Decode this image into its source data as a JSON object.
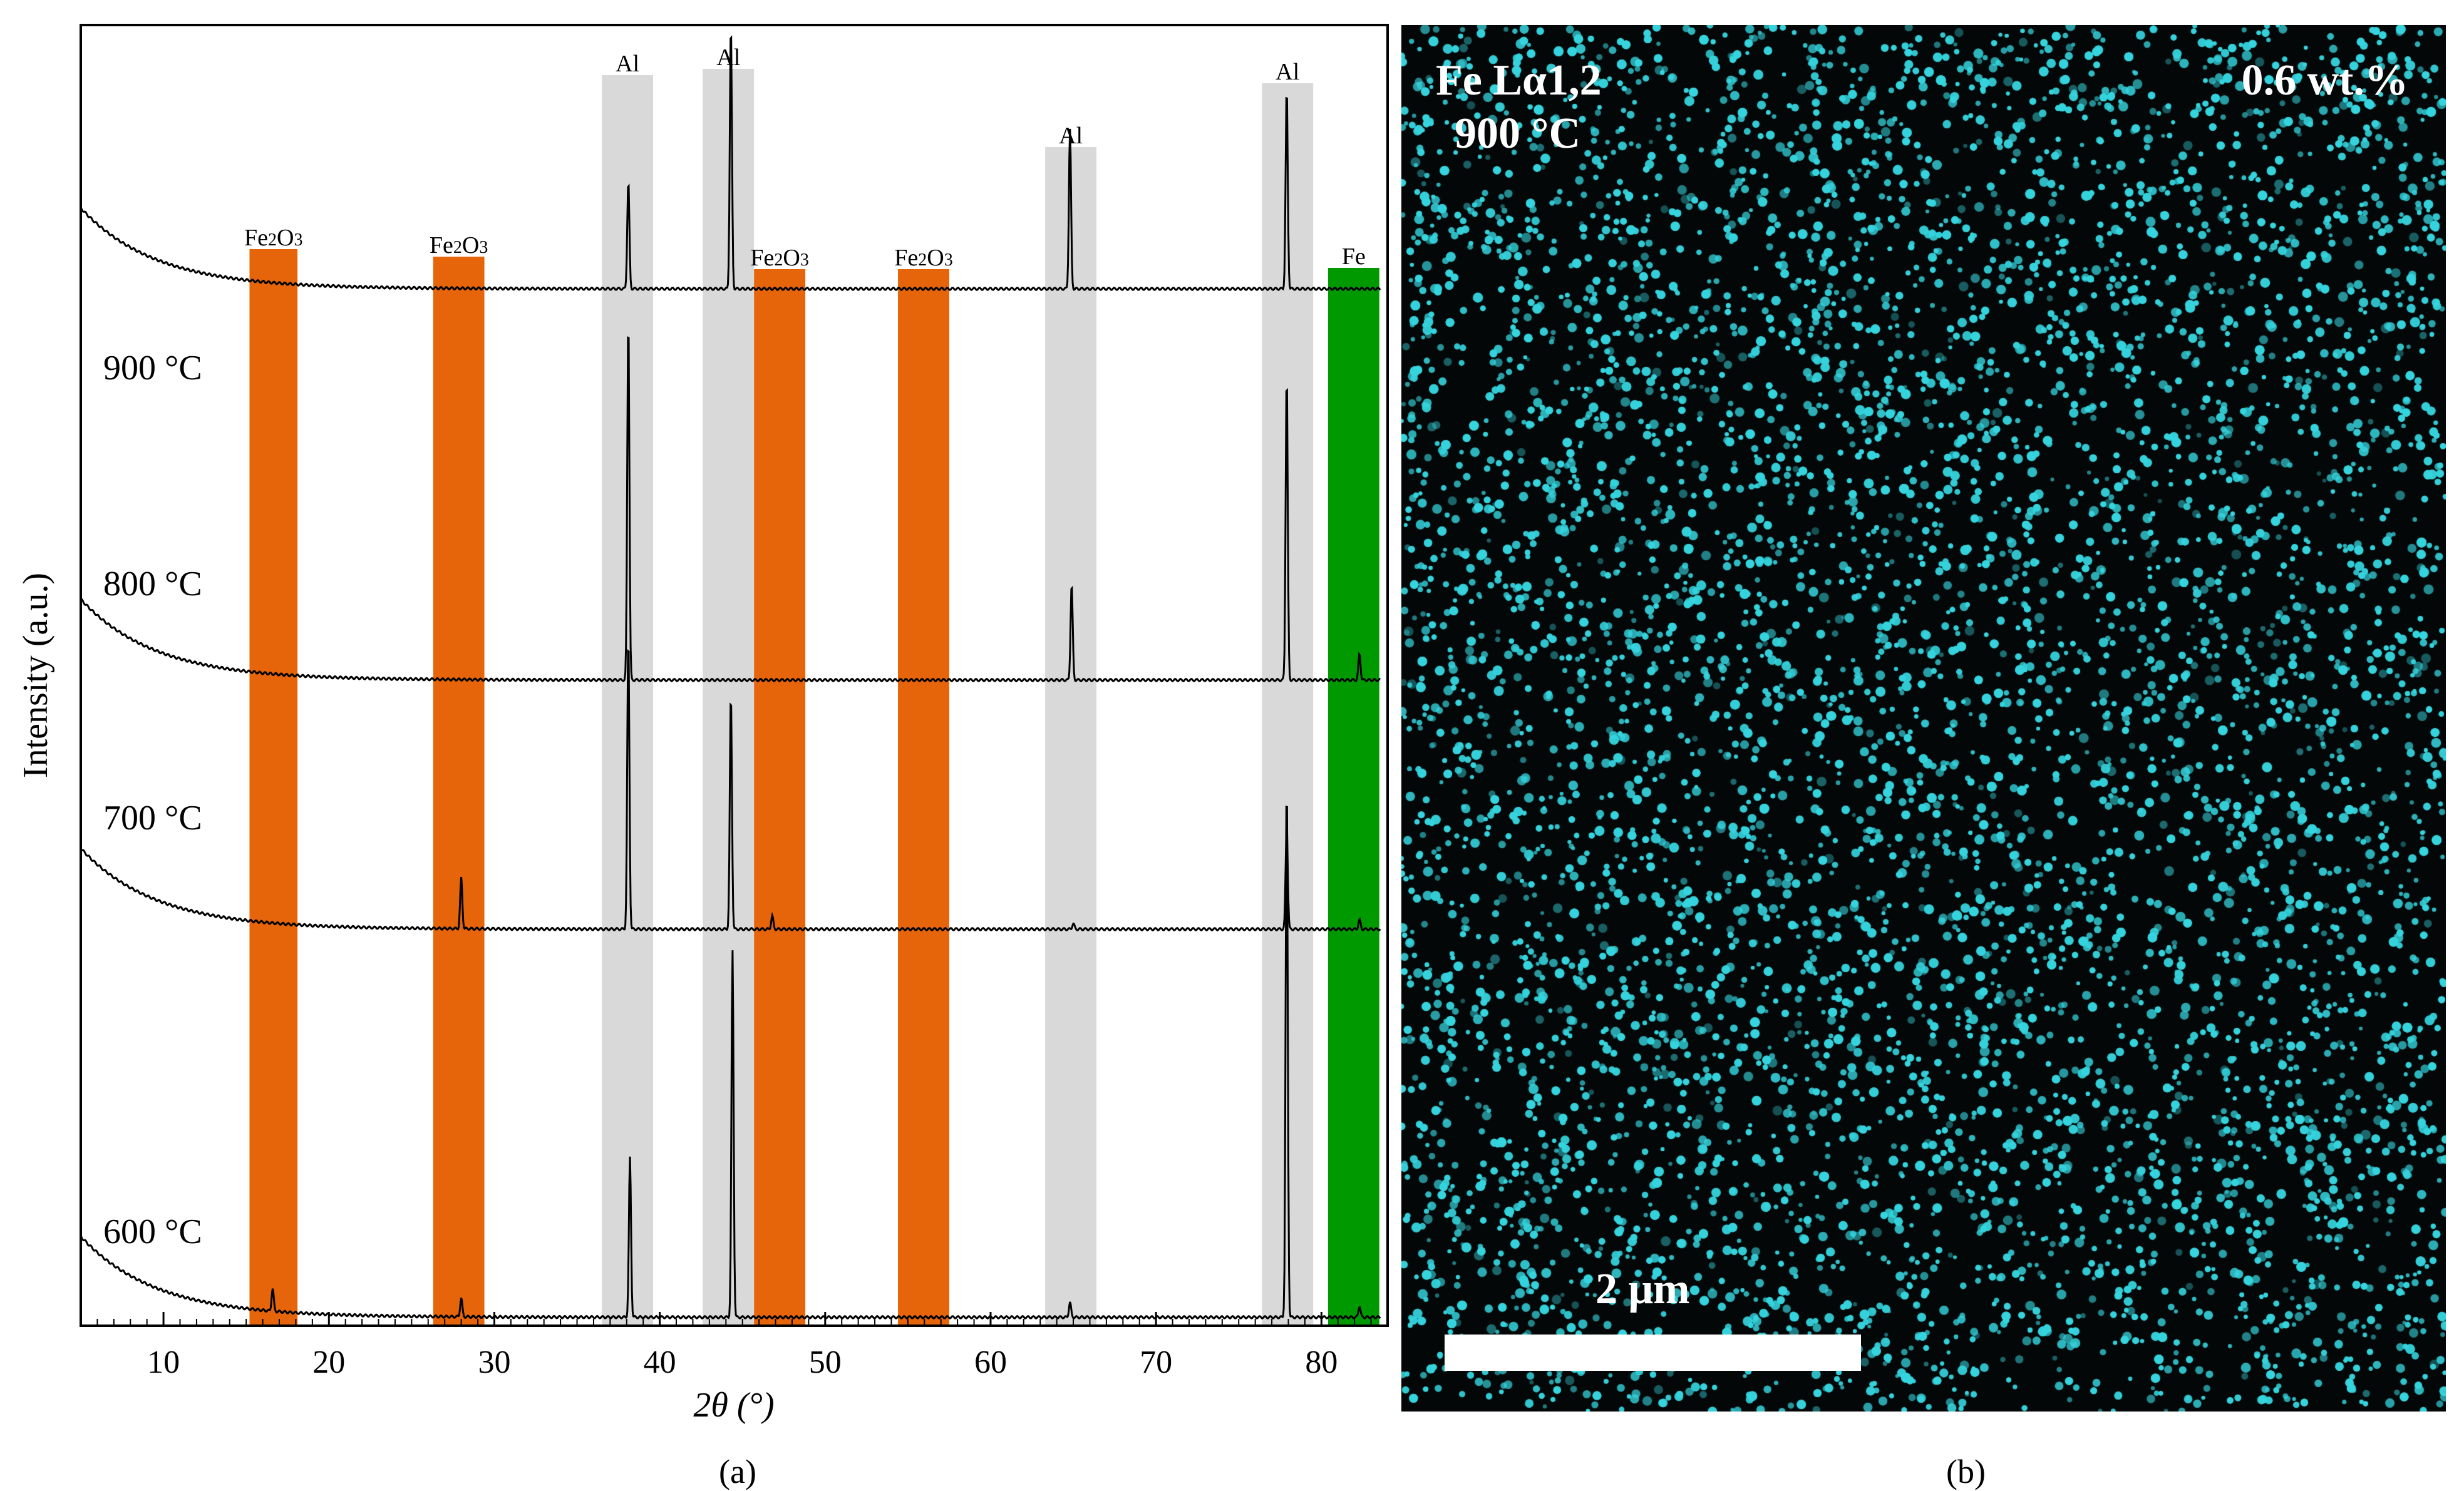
{
  "chart_data": [
    {
      "type": "line",
      "panel_caption": "(a)",
      "xlabel": "2θ (°)",
      "ylabel": "Intensity (a.u.)",
      "xlim": [
        5,
        84
      ],
      "x_ticks": [
        10,
        20,
        30,
        40,
        50,
        60,
        70,
        80
      ],
      "grid": false,
      "bands": [
        {
          "label": "Fe2O3",
          "phase": "Fe2O3",
          "x_range": [
            15.2,
            18.1
          ],
          "color": "#e6650a"
        },
        {
          "label": "Fe2O3",
          "phase": "Fe2O3",
          "x_range": [
            26.3,
            29.4
          ],
          "color": "#e6650a"
        },
        {
          "label": "Al",
          "phase": "Al",
          "x_range": [
            36.5,
            39.6
          ],
          "color": "#d9d9d9"
        },
        {
          "label": "Al",
          "phase": "Al",
          "x_range": [
            42.6,
            45.7
          ],
          "color": "#d9d9d9"
        },
        {
          "label": "Fe2O3",
          "phase": "Fe2O3",
          "x_range": [
            45.7,
            48.8
          ],
          "color": "#e6650a"
        },
        {
          "label": "Fe2O3",
          "phase": "Fe2O3",
          "x_range": [
            54.4,
            57.5
          ],
          "color": "#e6650a"
        },
        {
          "label": "Al",
          "phase": "Al",
          "x_range": [
            63.3,
            66.4
          ],
          "color": "#d9d9d9"
        },
        {
          "label": "Al",
          "phase": "Al",
          "x_range": [
            76.4,
            79.5
          ],
          "color": "#d9d9d9"
        },
        {
          "label": "Fe",
          "phase": "Fe",
          "x_range": [
            80.4,
            83.5
          ],
          "color": "#009900"
        }
      ],
      "series": [
        {
          "name": "600 °C",
          "peaks": [
            [
              16.6,
              0.12
            ],
            [
              28.0,
              0.1
            ],
            [
              38.2,
              0.85
            ],
            [
              44.4,
              1.95
            ],
            [
              64.8,
              0.08
            ],
            [
              77.9,
              2.85
            ],
            [
              82.3,
              0.06
            ]
          ]
        },
        {
          "name": "700 °C",
          "peaks": [
            [
              28.0,
              0.27
            ],
            [
              38.1,
              1.55
            ],
            [
              44.3,
              1.25
            ],
            [
              46.8,
              0.07
            ],
            [
              65.0,
              0.03
            ],
            [
              77.9,
              0.56
            ],
            [
              82.3,
              0.05
            ]
          ]
        },
        {
          "name": "800 °C",
          "peaks": [
            [
              38.1,
              1.92
            ],
            [
              64.9,
              0.51
            ],
            [
              77.9,
              1.62
            ],
            [
              82.3,
              0.14
            ]
          ]
        },
        {
          "name": "900 °C",
          "peaks": [
            [
              38.1,
              0.57
            ],
            [
              44.3,
              1.4
            ],
            [
              64.8,
              0.85
            ],
            [
              77.9,
              1.06
            ]
          ]
        }
      ]
    }
  ],
  "edx_map": {
    "panel_caption": "(b)",
    "element_label": "Fe Lα1,2",
    "temperature": "900 °C",
    "concentration": "0.6 wt.%",
    "scale_label": "2 μm",
    "dot_color": "#35d4de",
    "background_color": "#040707"
  }
}
